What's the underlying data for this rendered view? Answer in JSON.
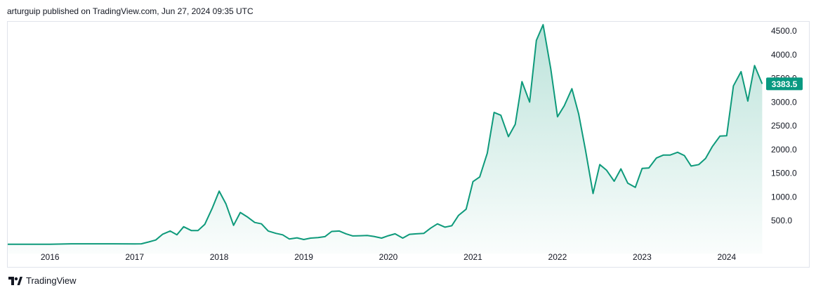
{
  "header": {
    "text": "arturguip published on TradingView.com, Jun 27, 2024 09:35 UTC"
  },
  "footer": {
    "brand": "TradingView",
    "logo_icon": "tradingview-logo-icon"
  },
  "colors": {
    "line": "#0e9a7b",
    "badge": "#089981",
    "axis_text": "#131722",
    "border": "#e0e3eb"
  },
  "chart_data": {
    "type": "area",
    "title": "",
    "xlabel": "",
    "ylabel": "",
    "x_ticks": [
      "2016",
      "2017",
      "2018",
      "2019",
      "2020",
      "2021",
      "2022",
      "2023",
      "2024"
    ],
    "y_ticks": [
      "500.0",
      "1000.0",
      "1500.0",
      "2000.0",
      "2500.0",
      "3000.0",
      "3500.0",
      "4000.0",
      "4500.0"
    ],
    "ylim": [
      0,
      4600
    ],
    "xlim": [
      2015.5,
      2024.45
    ],
    "grid": false,
    "last_price": "3383.5",
    "series": [
      {
        "x": [
          2015.5,
          2015.75,
          2016.0,
          2016.25,
          2016.5,
          2016.75,
          2017.0,
          2017.08,
          2017.17,
          2017.25,
          2017.33,
          2017.42,
          2017.5,
          2017.58,
          2017.67,
          2017.75,
          2017.83,
          2017.92,
          2018.0,
          2018.08,
          2018.17,
          2018.25,
          2018.33,
          2018.42,
          2018.5,
          2018.58,
          2018.67,
          2018.75,
          2018.83,
          2018.92,
          2019.0,
          2019.08,
          2019.17,
          2019.25,
          2019.33,
          2019.42,
          2019.5,
          2019.58,
          2019.67,
          2019.75,
          2019.83,
          2019.92,
          2020.0,
          2020.08,
          2020.17,
          2020.25,
          2020.33,
          2020.42,
          2020.5,
          2020.58,
          2020.67,
          2020.75,
          2020.83,
          2020.92,
          2021.0,
          2021.08,
          2021.17,
          2021.25,
          2021.33,
          2021.42,
          2021.5,
          2021.58,
          2021.67,
          2021.75,
          2021.83,
          2021.92,
          2022.0,
          2022.08,
          2022.17,
          2022.25,
          2022.33,
          2022.42,
          2022.5,
          2022.58,
          2022.67,
          2022.75,
          2022.83,
          2022.92,
          2023.0,
          2023.08,
          2023.17,
          2023.25,
          2023.33,
          2023.42,
          2023.5,
          2023.58,
          2023.67,
          2023.75,
          2023.83,
          2023.92,
          2024.0,
          2024.08,
          2024.17,
          2024.25,
          2024.33,
          2024.42
        ],
        "y": [
          0.9,
          0.9,
          1,
          10,
          10,
          10,
          8,
          10,
          50,
          90,
          210,
          280,
          200,
          370,
          290,
          290,
          420,
          770,
          1120,
          850,
          400,
          670,
          580,
          460,
          430,
          280,
          230,
          200,
          110,
          135,
          100,
          130,
          140,
          160,
          270,
          280,
          220,
          175,
          180,
          185,
          165,
          130,
          180,
          220,
          130,
          210,
          220,
          230,
          340,
          430,
          360,
          390,
          610,
          740,
          1320,
          1420,
          1920,
          2780,
          2720,
          2270,
          2530,
          3430,
          3000,
          4300,
          4630,
          3700,
          2690,
          2920,
          3280,
          2750,
          1990,
          1070,
          1680,
          1560,
          1330,
          1590,
          1290,
          1200,
          1600,
          1610,
          1820,
          1880,
          1880,
          1940,
          1870,
          1650,
          1680,
          1810,
          2060,
          2280,
          2290,
          3340,
          3640,
          3020,
          3770,
          3383.5
        ]
      }
    ]
  }
}
